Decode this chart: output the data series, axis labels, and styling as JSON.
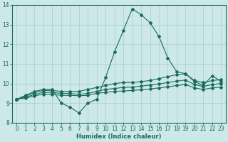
{
  "bg_color": "#cce8e8",
  "grid_color": "#aacccc",
  "line_color": "#1a6b5a",
  "x_label": "Humidex (Indice chaleur)",
  "xlim": [
    -0.5,
    23.5
  ],
  "ylim": [
    8,
    14
  ],
  "yticks": [
    8,
    9,
    10,
    11,
    12,
    13,
    14
  ],
  "xticks": [
    0,
    1,
    2,
    3,
    4,
    5,
    6,
    7,
    8,
    9,
    10,
    11,
    12,
    13,
    14,
    15,
    16,
    17,
    18,
    19,
    20,
    21,
    22,
    23
  ],
  "series": [
    {
      "x": [
        0,
        1,
        2,
        3,
        4,
        5,
        6,
        7,
        8,
        9,
        10,
        11,
        12,
        13,
        14,
        15,
        16,
        17,
        18,
        19,
        20,
        21,
        22,
        23
      ],
      "y": [
        9.2,
        9.4,
        9.6,
        9.7,
        9.7,
        9.0,
        8.8,
        8.5,
        9.0,
        9.2,
        10.3,
        11.6,
        12.7,
        13.8,
        13.5,
        13.1,
        12.4,
        11.3,
        10.6,
        10.5,
        10.1,
        9.9,
        10.4,
        10.1
      ]
    },
    {
      "x": [
        0,
        1,
        2,
        3,
        4,
        5,
        6,
        7,
        8,
        9,
        10,
        11,
        12,
        13,
        14,
        15,
        16,
        17,
        18,
        19,
        20,
        21,
        22,
        23
      ],
      "y": [
        9.2,
        9.35,
        9.55,
        9.65,
        9.65,
        9.6,
        9.6,
        9.6,
        9.7,
        9.8,
        9.9,
        10.0,
        10.05,
        10.05,
        10.1,
        10.15,
        10.25,
        10.35,
        10.45,
        10.5,
        10.15,
        10.05,
        10.15,
        10.2
      ]
    },
    {
      "x": [
        0,
        1,
        2,
        3,
        4,
        5,
        6,
        7,
        8,
        9,
        10,
        11,
        12,
        13,
        14,
        15,
        16,
        17,
        18,
        19,
        20,
        21,
        22,
        23
      ],
      "y": [
        9.2,
        9.3,
        9.45,
        9.55,
        9.55,
        9.5,
        9.5,
        9.45,
        9.5,
        9.6,
        9.7,
        9.75,
        9.8,
        9.82,
        9.87,
        9.92,
        9.98,
        10.05,
        10.12,
        10.18,
        9.95,
        9.85,
        9.95,
        10.0
      ]
    },
    {
      "x": [
        0,
        1,
        2,
        3,
        4,
        5,
        6,
        7,
        8,
        9,
        10,
        11,
        12,
        13,
        14,
        15,
        16,
        17,
        18,
        19,
        20,
        21,
        22,
        23
      ],
      "y": [
        9.2,
        9.25,
        9.38,
        9.45,
        9.45,
        9.4,
        9.4,
        9.38,
        9.4,
        9.5,
        9.55,
        9.6,
        9.62,
        9.65,
        9.68,
        9.72,
        9.78,
        9.83,
        9.9,
        9.95,
        9.78,
        9.7,
        9.78,
        9.82
      ]
    }
  ]
}
